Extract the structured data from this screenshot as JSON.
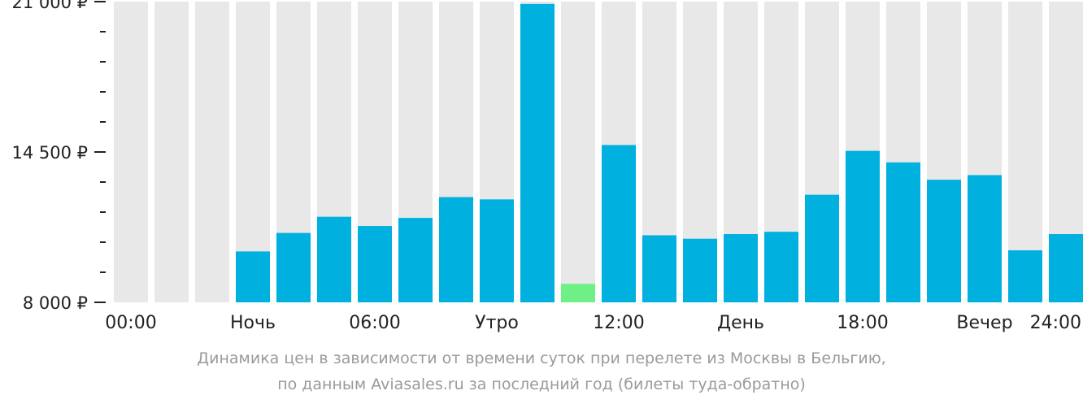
{
  "chart_data": {
    "type": "bar",
    "categories": [
      "00:00",
      "01:00",
      "02:00",
      "03:00",
      "04:00",
      "05:00",
      "06:00",
      "07:00",
      "08:00",
      "09:00",
      "10:00",
      "11:00",
      "12:00",
      "13:00",
      "14:00",
      "15:00",
      "16:00",
      "17:00",
      "18:00",
      "19:00",
      "20:00",
      "21:00",
      "22:00",
      "23:00"
    ],
    "values": [
      null,
      null,
      null,
      10200,
      11000,
      11700,
      11300,
      11650,
      12550,
      12450,
      20900,
      8800,
      14800,
      10900,
      10750,
      10950,
      11050,
      12650,
      14550,
      14050,
      13300,
      13500,
      10250,
      10950
    ],
    "min_index": 11,
    "ylim": [
      8000,
      21000
    ],
    "y_tick_labels": [
      {
        "value": 21000,
        "label": "21 000 ₽"
      },
      {
        "value": 14500,
        "label": "14 500 ₽"
      },
      {
        "value": 8000,
        "label": "8 000 ₽"
      }
    ],
    "y_minor_step": 1300,
    "x_tick_labels": [
      {
        "pos": 0,
        "label": "00:00"
      },
      {
        "pos": 3,
        "label": "Ночь"
      },
      {
        "pos": 6,
        "label": "06:00"
      },
      {
        "pos": 9,
        "label": "Утро"
      },
      {
        "pos": 12,
        "label": "12:00"
      },
      {
        "pos": 15,
        "label": "День"
      },
      {
        "pos": 18,
        "label": "18:00"
      },
      {
        "pos": 21,
        "label": "Вечер"
      },
      {
        "pos": 24,
        "label": "24:00"
      }
    ],
    "colors": {
      "bar": "#00b0de",
      "min_bar": "#6ff087",
      "background_bar": "#e8e8e8",
      "axis": "#222222"
    },
    "caption_line1": "Динамика цен в зависимости от времени суток при перелете из Москвы в Бельгию,",
    "caption_line2": "по данным Aviasales.ru за последний год (билеты туда-обратно)"
  }
}
